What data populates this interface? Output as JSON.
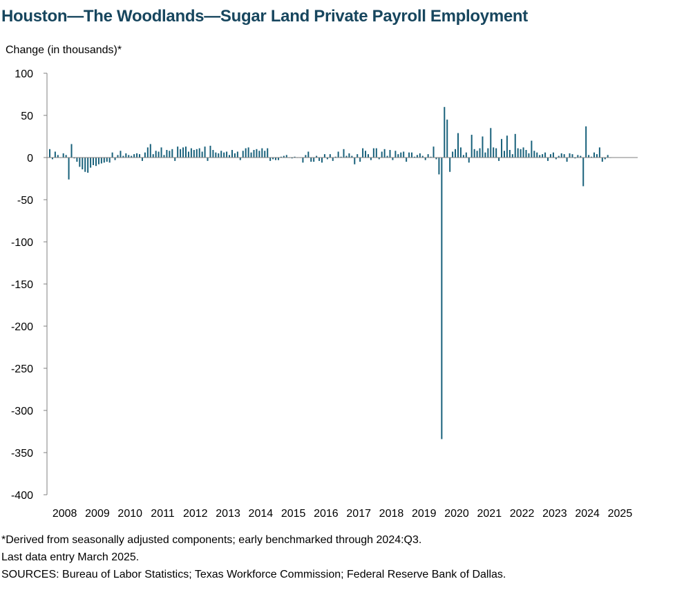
{
  "chart_data": {
    "type": "bar",
    "title": "Houston—The Woodlands—Sugar Land Private Payroll Employment",
    "ylabel": "Change (in thousands)*",
    "ylim": [
      -400,
      100
    ],
    "yticks": [
      100,
      50,
      0,
      -50,
      -100,
      -150,
      -200,
      -250,
      -300,
      -350,
      -400
    ],
    "xticks": [
      "2008",
      "2009",
      "2010",
      "2011",
      "2012",
      "2013",
      "2014",
      "2015",
      "2016",
      "2017",
      "2018",
      "2019",
      "2020",
      "2021",
      "2022",
      "2023",
      "2024",
      "2025"
    ],
    "start": "2008-01",
    "end": "2025-03",
    "series": [
      {
        "color": "#17607a",
        "values": [
          10,
          -2,
          7,
          3,
          0,
          5,
          3,
          -26,
          16,
          -1,
          -5,
          -11,
          -14,
          -17,
          -18,
          -12,
          -9,
          -10,
          -8,
          -7,
          -6,
          -5,
          -6,
          6,
          -3,
          3,
          8,
          2,
          5,
          3,
          2,
          4,
          5,
          4,
          -4,
          6,
          12,
          16,
          4,
          8,
          7,
          12,
          3,
          9,
          8,
          10,
          -4,
          13,
          10,
          12,
          13,
          7,
          11,
          9,
          10,
          11,
          7,
          13,
          -4,
          14,
          9,
          6,
          5,
          8,
          6,
          7,
          3,
          9,
          5,
          7,
          -3,
          8,
          11,
          12,
          6,
          9,
          10,
          8,
          11,
          8,
          11,
          -4,
          -2,
          -3,
          -3,
          1,
          2,
          3,
          0,
          -1,
          1,
          0,
          0,
          -6,
          3,
          7,
          -5,
          -5,
          2,
          -4,
          -6,
          4,
          -2,
          4,
          -4,
          1,
          7,
          1,
          10,
          2,
          5,
          2,
          -8,
          4,
          -5,
          11,
          8,
          4,
          -3,
          11,
          11,
          -2,
          7,
          10,
          2,
          9,
          -3,
          8,
          4,
          6,
          7,
          -5,
          6,
          6,
          1,
          3,
          5,
          2,
          -3,
          4,
          1,
          13,
          -2,
          -20,
          -334,
          60,
          45,
          -17,
          7,
          10,
          29,
          12,
          3,
          6,
          -6,
          27,
          10,
          8,
          11,
          25,
          6,
          11,
          35,
          12,
          11,
          -4,
          22,
          8,
          26,
          9,
          4,
          28,
          11,
          10,
          12,
          9,
          5,
          20,
          8,
          6,
          3,
          4,
          6,
          -4,
          4,
          6,
          -2,
          2,
          5,
          4,
          -5,
          5,
          4,
          -1,
          3,
          2,
          -34,
          37,
          3,
          1,
          6,
          4,
          12,
          -5,
          -2,
          3,
          0
        ]
      }
    ]
  },
  "notes": {
    "line1": "*Derived from seasonally adjusted components; early benchmarked through 2024:Q3.",
    "line2": "Last data entry March 2025.",
    "line3": "SOURCES: Bureau of Labor Statistics; Texas Workforce Commission; Federal Reserve Bank of Dallas."
  }
}
